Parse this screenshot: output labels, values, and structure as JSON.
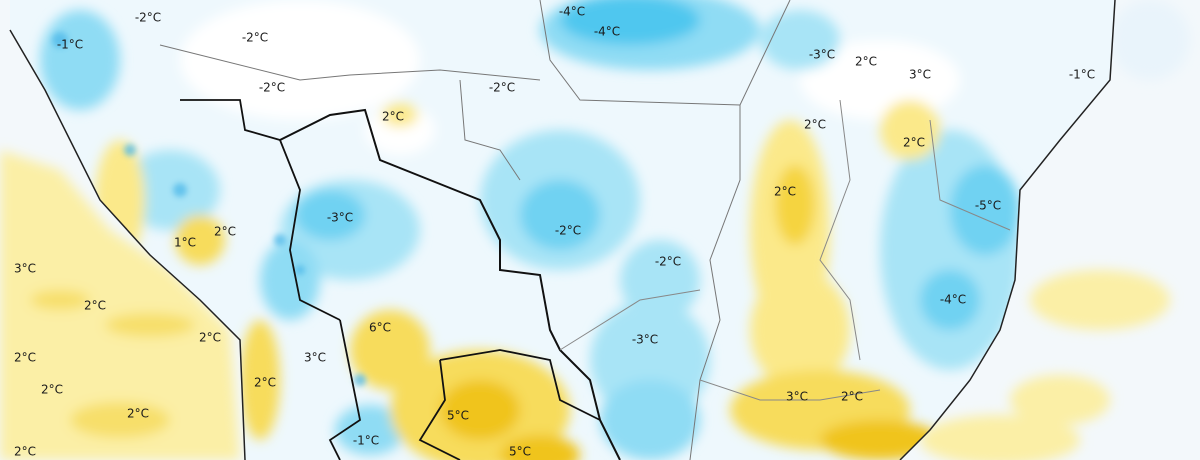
{
  "labels": [
    "-2°C",
    "-4°C",
    "-4°C",
    "-1°C",
    "-2°C",
    "-3°C",
    "2°C",
    "3°C",
    "-1°C",
    "-2°C",
    "-2°C",
    "2°C",
    "2°C",
    "2°C",
    "2°C",
    "-5°C",
    "-3°C",
    "2°C",
    "-2°C",
    "1°C",
    "-2°C",
    "3°C",
    "-4°C",
    "2°C",
    "6°C",
    "2°C",
    "-3°C",
    "2°C",
    "3°C",
    "2°C",
    "2°C",
    "3°C",
    "2°C",
    "2°C",
    "5°C",
    "-1°C",
    "2°C",
    "5°C"
  ]
}
